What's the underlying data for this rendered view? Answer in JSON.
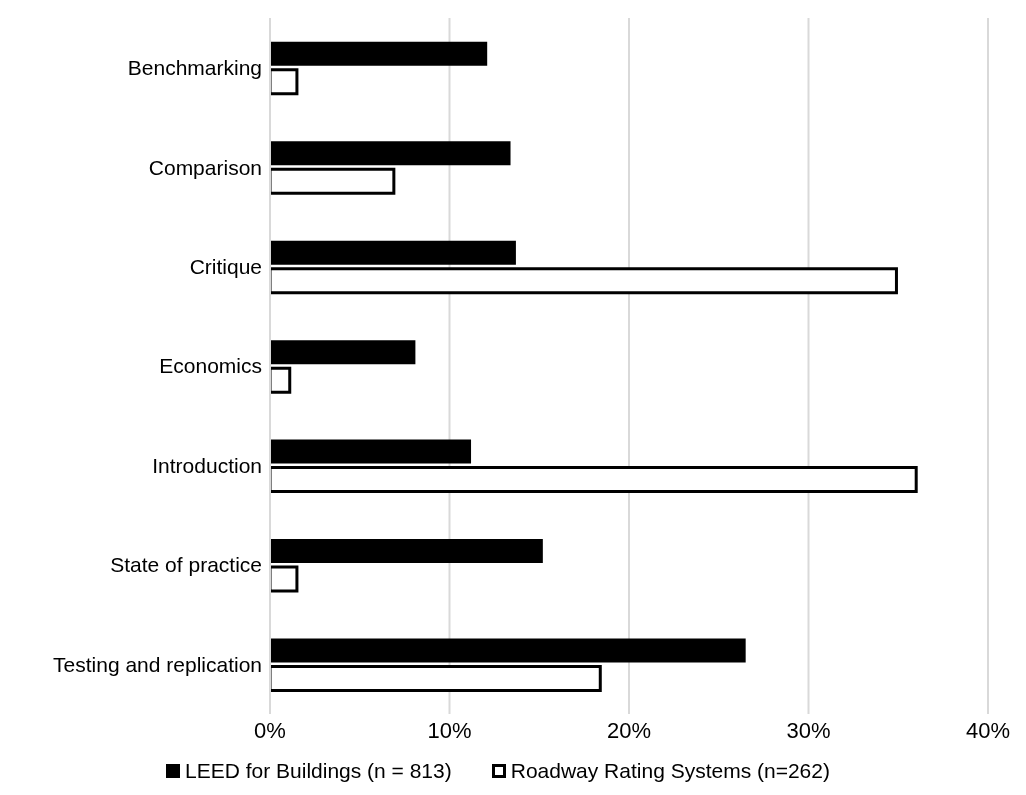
{
  "chart_data": {
    "type": "bar",
    "orientation": "horizontal",
    "categories": [
      "Benchmarking",
      "Comparison",
      "Critique",
      "Economics",
      "Introduction",
      "State of practice",
      "Testing and replication"
    ],
    "series": [
      {
        "name": "LEED for Buildings (n = 813)",
        "color": "#000000",
        "values": [
          12.1,
          13.4,
          13.7,
          8.1,
          11.2,
          15.2,
          26.5
        ]
      },
      {
        "name": "Roadway Rating Systems (n=262)",
        "color": "#ffffff",
        "values": [
          1.5,
          6.9,
          34.9,
          1.1,
          36.0,
          1.5,
          18.4
        ]
      }
    ],
    "xlim": [
      0,
      40
    ],
    "xticks": [
      {
        "value": 0,
        "label": "0%"
      },
      {
        "value": 10,
        "label": "10%"
      },
      {
        "value": 20,
        "label": "20%"
      },
      {
        "value": 30,
        "label": "30%"
      },
      {
        "value": 40,
        "label": "40%"
      }
    ],
    "grid": "x",
    "legend": "bottom"
  }
}
